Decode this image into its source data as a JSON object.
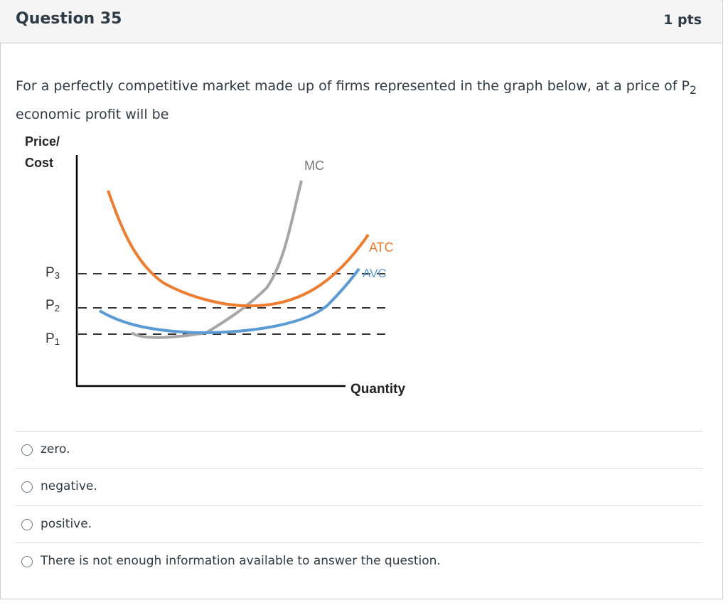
{
  "header": {
    "title": "Question 35",
    "points": "1 pts"
  },
  "question": {
    "text_before": "For a perfectly competitive market made up of firms represented in the graph below, at a price of P",
    "text_subscript": "2",
    "text_after": "economic profit will be"
  },
  "graph": {
    "y_axis_label_line1": "Price/",
    "y_axis_label_line2": "Cost",
    "x_axis_label": "Quantity",
    "curve_labels": {
      "mc": "MC",
      "atc": "ATC",
      "avc": "AVC"
    },
    "price_levels": [
      {
        "letter": "P",
        "sub": "3"
      },
      {
        "letter": "P",
        "sub": "2"
      },
      {
        "letter": "P",
        "sub": "1"
      }
    ]
  },
  "options": [
    "zero.",
    "negative.",
    "positive.",
    "There is not enough information available to answer the question."
  ]
}
